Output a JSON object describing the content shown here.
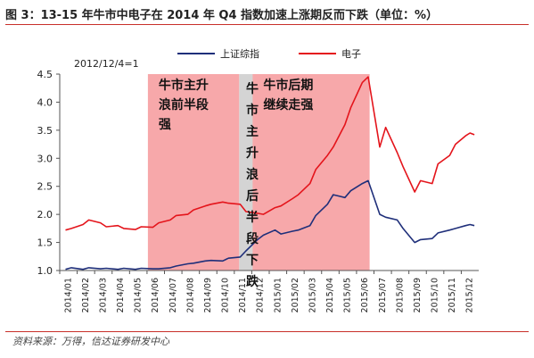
{
  "figure": {
    "title": "图 3：13-15 年牛市中电子在 2014 年 Q4 指数加速上涨期反而下跌（单位：%）",
    "source": "资料来源：万得，信达证券研发中心"
  },
  "chart_data": {
    "type": "line",
    "title": "",
    "xlabel": "",
    "ylabel": "",
    "base_note": "2012/12/4=1",
    "ylim": [
      1.0,
      4.5
    ],
    "y_ticks": [
      1.0,
      1.5,
      2.0,
      2.5,
      3.0,
      3.5,
      4.0,
      4.5
    ],
    "y_tick_labels": [
      "1.0",
      "1.5",
      "2.0",
      "2.5",
      "3.0",
      "3.5",
      "4.0",
      "4.5"
    ],
    "x_ticks": [
      "2014/01",
      "2014/02",
      "2014/03",
      "2014/04",
      "2014/05",
      "2014/06",
      "2014/07",
      "2014/08",
      "2014/09",
      "2014/10",
      "2014/11",
      "2014/12",
      "2015/01",
      "2015/02",
      "2015/03",
      "2015/04",
      "2015/05",
      "2015/06",
      "2015/07",
      "2015/08",
      "2015/09",
      "2015/10",
      "2015/11",
      "2015/12"
    ],
    "legend": {
      "position": "top",
      "entries": [
        "上证综指",
        "电子"
      ]
    },
    "colors": {
      "上证综指": "#1f2f7a",
      "电子": "#e4141b",
      "phase_fill": "#f7a8aa",
      "highlight_fill": "#d4d4d4"
    },
    "annotations": [
      {
        "text": "牛市主升浪前半段强",
        "x_start": "2014/06",
        "x_end": "2014/11",
        "style": "pink"
      },
      {
        "text": "牛市主升浪后半段下跌",
        "x_start": "2014/11",
        "x_end": "2014/12",
        "style": "gray",
        "vertical": true
      },
      {
        "text": "牛市后期继续走强",
        "x_start": "2014/12",
        "x_end": "2015/06",
        "style": "pink"
      }
    ],
    "series": [
      {
        "name": "上证综指",
        "points": [
          [
            "2014/01",
            1.02
          ],
          [
            "2014/01",
            1.05
          ],
          [
            "2014/02",
            1.02
          ],
          [
            "2014/02",
            1.05
          ],
          [
            "2014/03",
            1.03
          ],
          [
            "2014/03",
            1.04
          ],
          [
            "2014/04",
            1.02
          ],
          [
            "2014/04",
            1.04
          ],
          [
            "2014/05",
            1.02
          ],
          [
            "2014/05",
            1.04
          ],
          [
            "2014/06",
            1.03
          ],
          [
            "2014/06",
            1.03
          ],
          [
            "2014/07",
            1.05
          ],
          [
            "2014/07",
            1.08
          ],
          [
            "2014/08",
            1.12
          ],
          [
            "2014/08",
            1.13
          ],
          [
            "2014/09",
            1.17
          ],
          [
            "2014/09",
            1.18
          ],
          [
            "2014/10",
            1.17
          ],
          [
            "2014/10",
            1.22
          ],
          [
            "2014/11",
            1.24
          ],
          [
            "2014/11",
            1.35
          ],
          [
            "2014/12",
            1.55
          ],
          [
            "2014/12",
            1.63
          ],
          [
            "2015/01",
            1.72
          ],
          [
            "2015/01",
            1.65
          ],
          [
            "2015/02",
            1.7
          ],
          [
            "2015/02",
            1.72
          ],
          [
            "2015/03",
            1.8
          ],
          [
            "2015/03",
            1.98
          ],
          [
            "2015/04",
            2.18
          ],
          [
            "2015/04",
            2.35
          ],
          [
            "2015/05",
            2.3
          ],
          [
            "2015/05",
            2.42
          ],
          [
            "2015/06",
            2.55
          ],
          [
            "2015/06",
            2.6
          ],
          [
            "2015/07",
            2.0
          ],
          [
            "2015/07",
            1.95
          ],
          [
            "2015/08",
            1.9
          ],
          [
            "2015/08",
            1.75
          ],
          [
            "2015/09",
            1.5
          ],
          [
            "2015/09",
            1.55
          ],
          [
            "2015/10",
            1.57
          ],
          [
            "2015/10",
            1.67
          ],
          [
            "2015/11",
            1.72
          ],
          [
            "2015/11",
            1.75
          ],
          [
            "2015/12",
            1.8
          ],
          [
            "2015/12",
            1.82
          ],
          [
            "2015/12",
            1.8
          ]
        ]
      },
      {
        "name": "电子",
        "points": [
          [
            "2014/01",
            1.72
          ],
          [
            "2014/01",
            1.75
          ],
          [
            "2014/02",
            1.82
          ],
          [
            "2014/02",
            1.9
          ],
          [
            "2014/03",
            1.85
          ],
          [
            "2014/03",
            1.78
          ],
          [
            "2014/04",
            1.8
          ],
          [
            "2014/04",
            1.75
          ],
          [
            "2014/05",
            1.73
          ],
          [
            "2014/05",
            1.78
          ],
          [
            "2014/06",
            1.77
          ],
          [
            "2014/06",
            1.85
          ],
          [
            "2014/07",
            1.9
          ],
          [
            "2014/07",
            1.98
          ],
          [
            "2014/08",
            2.0
          ],
          [
            "2014/08",
            2.08
          ],
          [
            "2014/09",
            2.15
          ],
          [
            "2014/09",
            2.18
          ],
          [
            "2014/10",
            2.22
          ],
          [
            "2014/10",
            2.2
          ],
          [
            "2014/11",
            2.18
          ],
          [
            "2014/11",
            2.05
          ],
          [
            "2014/12",
            2.02
          ],
          [
            "2014/12",
            2.0
          ],
          [
            "2015/01",
            2.12
          ],
          [
            "2015/01",
            2.15
          ],
          [
            "2015/02",
            2.28
          ],
          [
            "2015/02",
            2.35
          ],
          [
            "2015/03",
            2.55
          ],
          [
            "2015/03",
            2.8
          ],
          [
            "2015/04",
            3.05
          ],
          [
            "2015/04",
            3.2
          ],
          [
            "2015/05",
            3.6
          ],
          [
            "2015/05",
            3.9
          ],
          [
            "2015/06",
            4.35
          ],
          [
            "2015/06",
            4.45
          ],
          [
            "2015/07",
            3.2
          ],
          [
            "2015/07",
            3.55
          ],
          [
            "2015/08",
            3.1
          ],
          [
            "2015/08",
            2.85
          ],
          [
            "2015/09",
            2.4
          ],
          [
            "2015/09",
            2.6
          ],
          [
            "2015/10",
            2.55
          ],
          [
            "2015/10",
            2.9
          ],
          [
            "2015/11",
            3.05
          ],
          [
            "2015/11",
            3.25
          ],
          [
            "2015/12",
            3.4
          ],
          [
            "2015/12",
            3.45
          ],
          [
            "2015/12",
            3.42
          ]
        ]
      }
    ]
  }
}
